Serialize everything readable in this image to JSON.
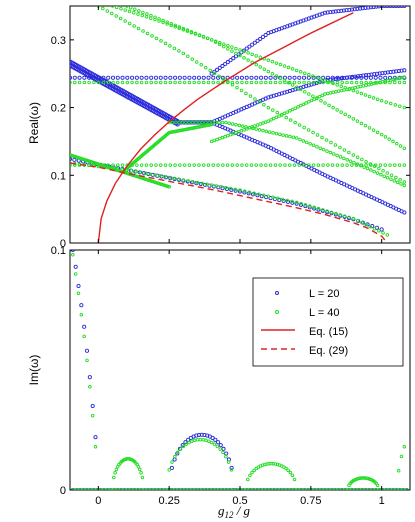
{
  "figure": {
    "xlabel": "g12 / g",
    "xlabel_main": "g",
    "xlabel_sub": "12",
    "xlabel_tail": " / g"
  },
  "colors": {
    "L20": "#2b2bdc",
    "L40": "#22dd22",
    "eq15": "#e02020",
    "eq29": "#e02020"
  },
  "chart_data": [
    {
      "type": "scatter",
      "ylabel": "Real(ω)",
      "xlim": [
        -0.1,
        1.1
      ],
      "ylim": [
        0,
        0.35
      ],
      "xticks": [
        0,
        0.25,
        0.5,
        0.75,
        1
      ],
      "xticklabels": [
        "",
        "",
        "",
        "",
        ""
      ],
      "yticks": [
        0,
        0.1,
        0.2,
        0.3
      ],
      "yticklabels": [
        "0",
        "0.1",
        "0.2",
        "0.3"
      ],
      "series": [
        {
          "name": "L = 20",
          "color": "#2b2bdc",
          "kind": "points",
          "branches": [
            {
              "x": [
                -0.1,
                1.08
              ],
              "y": [
                0.244,
                0.244
              ]
            },
            {
              "x": [
                -0.1,
                0.28
              ],
              "y": [
                0.268,
                0.18
              ]
            },
            {
              "x": [
                -0.1,
                0.28
              ],
              "y": [
                0.262,
                0.175
              ]
            },
            {
              "x": [
                0.28,
                0.4
              ],
              "y": [
                0.178,
                0.178
              ]
            },
            {
              "x": [
                0.4,
                0.6,
                0.8,
                1.08
              ],
              "y": [
                0.178,
                0.215,
                0.24,
                0.255
              ]
            },
            {
              "x": [
                0.4,
                0.6,
                0.8,
                1.08
              ],
              "y": [
                0.178,
                0.142,
                0.1,
                0.045
              ]
            },
            {
              "x": [
                0.4,
                0.6,
                0.8,
                1.0,
                1.08
              ],
              "y": [
                0.25,
                0.31,
                0.34,
                0.35,
                0.35
              ]
            },
            {
              "x": [
                -0.1,
                0.1,
                0.3,
                0.5,
                0.7,
                0.9,
                1.0
              ],
              "y": [
                0.124,
                0.108,
                0.092,
                0.076,
                0.058,
                0.035,
                0.02
              ]
            }
          ]
        },
        {
          "name": "L = 40",
          "color": "#22dd22",
          "kind": "points",
          "branches": [
            {
              "x": [
                -0.1,
                1.08
              ],
              "y": [
                0.237,
                0.237
              ]
            },
            {
              "x": [
                -0.1,
                1.08
              ],
              "y": [
                0.115,
                0.115
              ]
            },
            {
              "x": [
                -0.1,
                0.1,
                0.3,
                0.5,
                0.7,
                0.9,
                1.02
              ],
              "y": [
                0.118,
                0.108,
                0.093,
                0.078,
                0.06,
                0.036,
                0.012
              ]
            },
            {
              "x": [
                -0.1,
                0.25
              ],
              "y": [
                0.13,
                0.083
              ]
            },
            {
              "x": [
                0.0,
                0.3,
                0.6,
                0.9,
                1.08
              ],
              "y": [
                0.35,
                0.28,
                0.2,
                0.13,
                0.09
              ]
            },
            {
              "x": [
                0.1,
                0.4,
                0.7,
                1.0,
                1.08
              ],
              "y": [
                0.35,
                0.3,
                0.23,
                0.16,
                0.14
              ]
            },
            {
              "x": [
                0.05,
                0.2,
                0.4,
                0.6,
                0.8,
                1.0,
                1.08
              ],
              "y": [
                0.35,
                0.33,
                0.3,
                0.27,
                0.24,
                0.21,
                0.2
              ]
            },
            {
              "x": [
                0.1,
                0.25,
                0.4
              ],
              "y": [
                0.11,
                0.163,
                0.175
              ]
            },
            {
              "x": [
                0.25,
                0.45,
                0.7,
                0.95,
                1.08
              ],
              "y": [
                0.178,
                0.178,
                0.155,
                0.11,
                0.085
              ]
            },
            {
              "x": [
                0.4,
                0.6,
                0.8,
                1.08
              ],
              "y": [
                0.15,
                0.18,
                0.22,
                0.245
              ]
            }
          ]
        },
        {
          "name": "Eq. (15)",
          "color": "#e02020",
          "kind": "line",
          "dash": false,
          "x": [
            0.0,
            0.01,
            0.03,
            0.06,
            0.1,
            0.15,
            0.2,
            0.25,
            0.3,
            0.35,
            0.4,
            0.45,
            0.5,
            0.55,
            0.6,
            0.65,
            0.7,
            0.75,
            0.8,
            0.85,
            0.9
          ],
          "y": [
            0.0,
            0.036,
            0.062,
            0.088,
            0.113,
            0.139,
            0.16,
            0.179,
            0.196,
            0.212,
            0.226,
            0.24,
            0.253,
            0.266,
            0.277,
            0.288,
            0.299,
            0.31,
            0.32,
            0.33,
            0.34
          ]
        },
        {
          "name": "Eq. (29)",
          "color": "#e02020",
          "kind": "line",
          "dash": true,
          "x": [
            -0.1,
            0.0,
            0.1,
            0.2,
            0.3,
            0.4,
            0.5,
            0.6,
            0.7,
            0.8,
            0.9,
            0.95,
            1.0,
            1.02
          ],
          "y": [
            0.118,
            0.112,
            0.103,
            0.095,
            0.087,
            0.079,
            0.07,
            0.061,
            0.052,
            0.042,
            0.03,
            0.022,
            0.01,
            0.0
          ]
        }
      ]
    },
    {
      "type": "scatter",
      "ylabel": "Im(ω)",
      "xlim": [
        -0.1,
        1.1
      ],
      "ylim": [
        0,
        0.1
      ],
      "xticks": [
        0,
        0.25,
        0.5,
        0.75,
        1
      ],
      "xticklabels": [
        "0",
        "0.25",
        "0.5",
        "0.75",
        "1"
      ],
      "yticks": [
        0,
        0.1
      ],
      "yticklabels": [
        "0",
        "0.1"
      ],
      "legend": {
        "placement": "top-right",
        "entries": [
          "L = 20",
          "L = 40",
          "Eq. (15)",
          "Eq. (29)"
        ]
      },
      "series": [
        {
          "name": "L = 20",
          "color": "#2b2bdc",
          "kind": "points",
          "points": [
            {
              "x": -0.09,
              "y": 0.1
            },
            {
              "x": -0.08,
              "y": 0.093
            },
            {
              "x": -0.07,
              "y": 0.085
            },
            {
              "x": -0.06,
              "y": 0.077
            },
            {
              "x": -0.05,
              "y": 0.068
            },
            {
              "x": -0.04,
              "y": 0.058
            },
            {
              "x": -0.03,
              "y": 0.047
            },
            {
              "x": -0.02,
              "y": 0.035
            },
            {
              "x": -0.01,
              "y": 0.022
            }
          ],
          "arcs": [
            {
              "x0": 0.25,
              "x1": 0.48,
              "ymax": 0.023
            }
          ],
          "baseline": [
            -0.1,
            1.1
          ]
        },
        {
          "name": "L = 40",
          "color": "#22dd22",
          "kind": "points",
          "points": [
            {
              "x": -0.09,
              "y": 0.098
            },
            {
              "x": -0.08,
              "y": 0.09
            },
            {
              "x": -0.07,
              "y": 0.082
            },
            {
              "x": -0.06,
              "y": 0.073
            },
            {
              "x": -0.05,
              "y": 0.064
            },
            {
              "x": -0.04,
              "y": 0.054
            },
            {
              "x": -0.03,
              "y": 0.043
            },
            {
              "x": -0.02,
              "y": 0.031
            },
            {
              "x": -0.01,
              "y": 0.018
            },
            {
              "x": 1.08,
              "y": 0.018
            },
            {
              "x": 1.07,
              "y": 0.014
            },
            {
              "x": 1.06,
              "y": 0.008
            }
          ],
          "arcs": [
            {
              "x0": 0.05,
              "x1": 0.16,
              "ymax": 0.013
            },
            {
              "x0": 0.24,
              "x1": 0.48,
              "ymax": 0.021
            },
            {
              "x0": 0.52,
              "x1": 0.7,
              "ymax": 0.011
            },
            {
              "x0": 0.88,
              "x1": 0.99,
              "ymax": 0.005
            }
          ],
          "baseline": [
            -0.1,
            1.1
          ]
        }
      ]
    }
  ]
}
